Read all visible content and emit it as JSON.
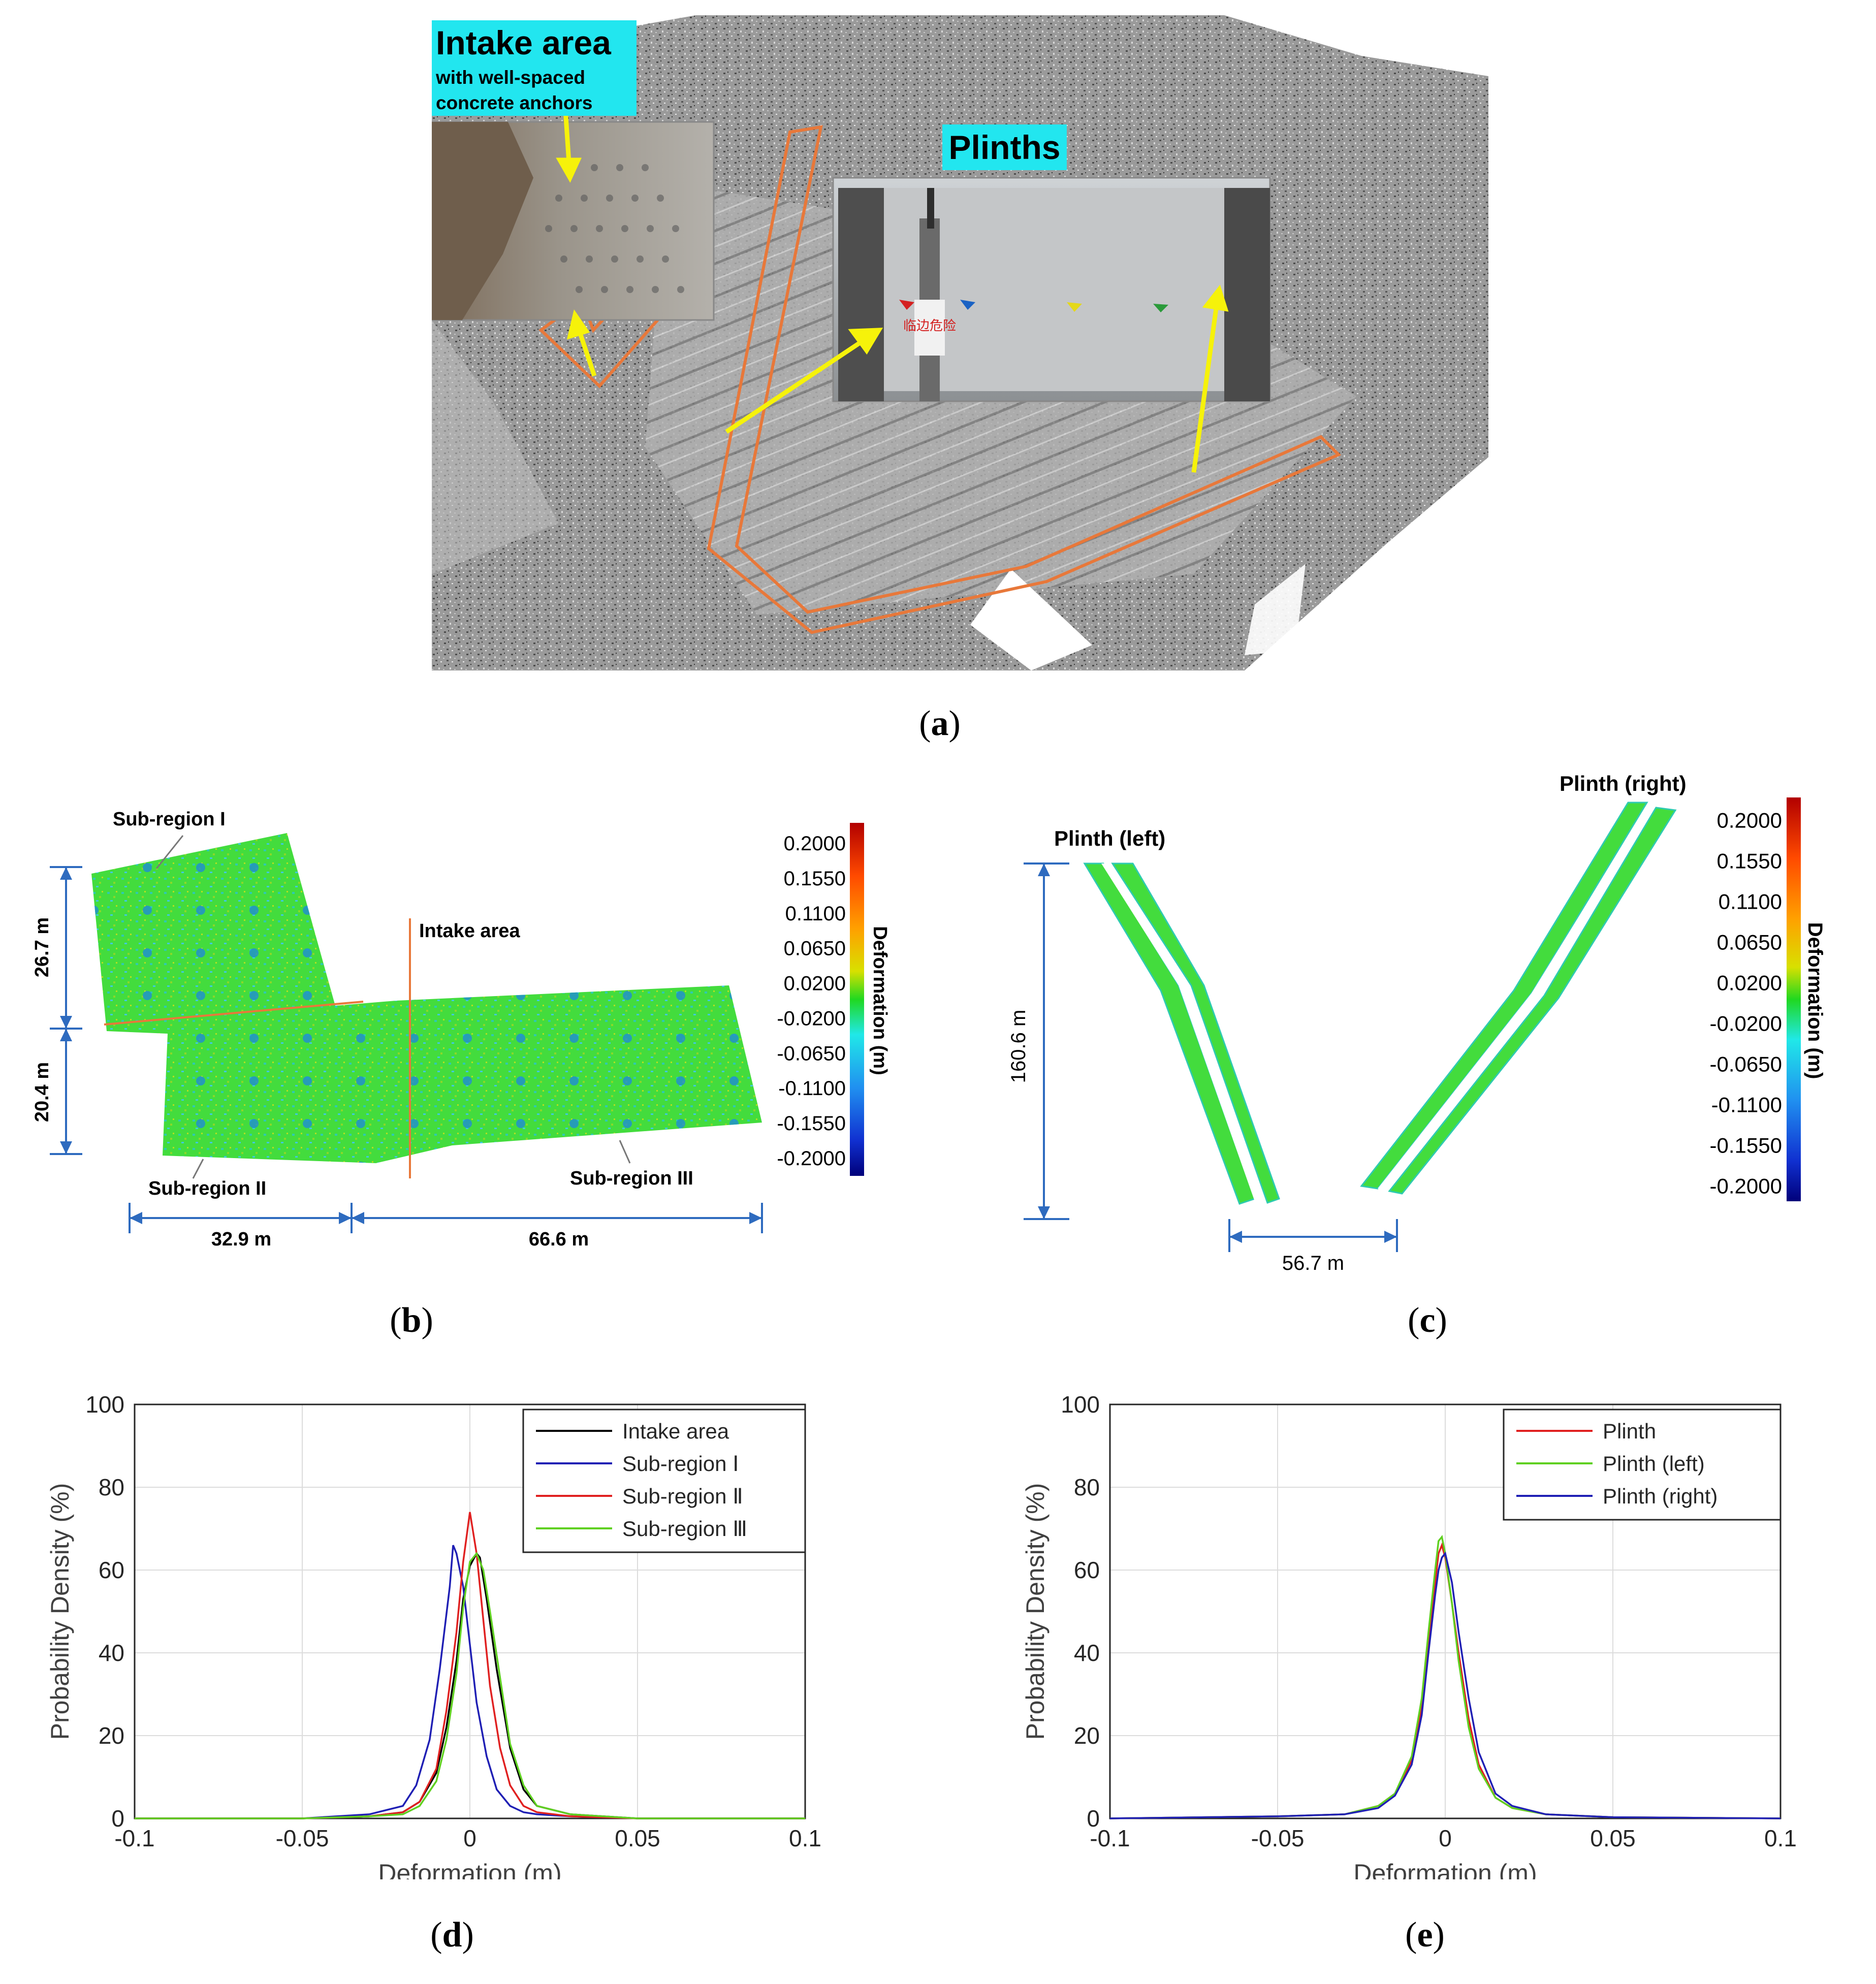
{
  "panel_a": {
    "intake_title": "Intake area",
    "intake_sub1": "with well-spaced",
    "intake_sub2": "concrete anchors",
    "plinths_title": "Plinths",
    "sign_text": "临边危险"
  },
  "panel_b": {
    "labels": {
      "sub1": "Sub-region I",
      "sub2": "Sub-region II",
      "sub3": "Sub-region III",
      "intake": "Intake area"
    },
    "dims": {
      "left_top": "26.7 m",
      "left_bottom": "20.4 m",
      "bottom_left": "32.9 m",
      "bottom_right": "66.6 m"
    },
    "colorbar_title": "Deformation (m)",
    "colorbar_ticks": [
      "0.2000",
      "0.1550",
      "0.1100",
      "0.0650",
      "0.0200",
      "-0.0200",
      "-0.0650",
      "-0.1100",
      "-0.1550",
      "-0.2000"
    ]
  },
  "panel_c": {
    "labels": {
      "left": "Plinth (left)",
      "right": "Plinth (right)"
    },
    "dims": {
      "height": "160.6 m",
      "width": "56.7 m"
    },
    "colorbar_title": "Deformation (m)",
    "colorbar_ticks": [
      "0.2000",
      "0.1550",
      "0.1100",
      "0.0650",
      "0.0200",
      "-0.0200",
      "-0.0650",
      "-0.1100",
      "-0.1550",
      "-0.2000"
    ]
  },
  "captions": {
    "a": "a",
    "b": "b",
    "c": "c",
    "d": "d",
    "e": "e"
  },
  "colors": {
    "black": "#000000",
    "blue": "#1f1fb4",
    "red": "#e02020",
    "green": "#5fd020",
    "orange": "#e8783a",
    "yellow": "#f6f20a",
    "cyan": "#22e6ef"
  },
  "chart_data": [
    {
      "type": "line",
      "xlabel": "Deformation (m)",
      "ylabel": "Probability Density (%)",
      "xlim": [
        -0.1,
        0.1
      ],
      "ylim": [
        0,
        100
      ],
      "xticks": [
        "-0.1",
        "-0.05",
        "0",
        "0.05",
        "0.1"
      ],
      "yticks": [
        "0",
        "20",
        "40",
        "60",
        "80",
        "100"
      ],
      "grid": true,
      "legend": "top-right",
      "series": [
        {
          "name": "Intake area",
          "color": "#000000",
          "x": [
            -0.1,
            -0.05,
            -0.03,
            -0.02,
            -0.015,
            -0.01,
            -0.007,
            -0.004,
            -0.002,
            0,
            0.002,
            0.003,
            0.005,
            0.008,
            0.012,
            0.016,
            0.02,
            0.03,
            0.05,
            0.1
          ],
          "y": [
            0,
            0,
            0.5,
            1.5,
            4,
            11,
            22,
            38,
            53,
            61,
            64,
            63,
            53,
            36,
            17,
            7,
            3,
            1,
            0,
            0
          ]
        },
        {
          "name": "Sub-region Ⅰ",
          "color": "#1f1fb4",
          "x": [
            -0.1,
            -0.05,
            -0.03,
            -0.02,
            -0.016,
            -0.012,
            -0.009,
            -0.006,
            -0.005,
            -0.004,
            -0.002,
            0,
            0.002,
            0.005,
            0.008,
            0.012,
            0.016,
            0.02,
            0.03,
            0.05,
            0.1
          ],
          "y": [
            0,
            0,
            1,
            3,
            8,
            19,
            36,
            56,
            66,
            64,
            56,
            42,
            28,
            15,
            7,
            3,
            1.5,
            1,
            0.5,
            0,
            0
          ]
        },
        {
          "name": "Sub-region Ⅱ",
          "color": "#e02020",
          "x": [
            -0.1,
            -0.05,
            -0.03,
            -0.02,
            -0.015,
            -0.01,
            -0.007,
            -0.004,
            -0.002,
            0,
            0.002,
            0.004,
            0.006,
            0.009,
            0.012,
            0.016,
            0.02,
            0.03,
            0.05,
            0.1
          ],
          "y": [
            0,
            0,
            0.5,
            1.5,
            4,
            12,
            26,
            45,
            62,
            74,
            64,
            48,
            32,
            17,
            8,
            3,
            1.5,
            0.5,
            0,
            0
          ]
        },
        {
          "name": "Sub-region Ⅲ",
          "color": "#5fd020",
          "x": [
            -0.1,
            -0.05,
            -0.03,
            -0.02,
            -0.015,
            -0.01,
            -0.007,
            -0.004,
            -0.002,
            0,
            0.002,
            0.004,
            0.006,
            0.009,
            0.012,
            0.016,
            0.02,
            0.03,
            0.05,
            0.1
          ],
          "y": [
            0,
            0,
            0.5,
            1,
            3,
            9,
            19,
            35,
            51,
            62,
            64,
            60,
            50,
            34,
            18,
            8,
            3,
            1,
            0,
            0
          ]
        }
      ]
    },
    {
      "type": "line",
      "xlabel": "Deformation (m)",
      "ylabel": "Probability Density (%)",
      "xlim": [
        -0.1,
        0.1
      ],
      "ylim": [
        0,
        100
      ],
      "xticks": [
        "-0.1",
        "-0.05",
        "0",
        "0.05",
        "0.1"
      ],
      "yticks": [
        "0",
        "20",
        "40",
        "60",
        "80",
        "100"
      ],
      "grid": true,
      "legend": "top-right",
      "series": [
        {
          "name": "Plinth",
          "color": "#e02020",
          "x": [
            -0.1,
            -0.05,
            -0.03,
            -0.02,
            -0.015,
            -0.01,
            -0.007,
            -0.005,
            -0.003,
            -0.002,
            -0.001,
            0,
            0.002,
            0.004,
            0.007,
            0.01,
            0.015,
            0.02,
            0.03,
            0.05,
            0.1
          ],
          "y": [
            0,
            0.5,
            1,
            3,
            6,
            14,
            27,
            42,
            57,
            64,
            66,
            63,
            52,
            40,
            24,
            13,
            5,
            2.5,
            1,
            0.3,
            0
          ]
        },
        {
          "name": "Plinth (left)",
          "color": "#5fd020",
          "x": [
            -0.1,
            -0.05,
            -0.03,
            -0.02,
            -0.015,
            -0.01,
            -0.007,
            -0.005,
            -0.003,
            -0.002,
            -0.001,
            0,
            0.002,
            0.004,
            0.007,
            0.01,
            0.015,
            0.02,
            0.03,
            0.05,
            0.1
          ],
          "y": [
            0,
            0.5,
            1,
            3,
            6,
            15,
            29,
            45,
            60,
            67,
            68,
            64,
            52,
            38,
            22,
            12,
            5,
            2.5,
            1,
            0.3,
            0
          ]
        },
        {
          "name": "Plinth (right)",
          "color": "#1f1fb4",
          "x": [
            -0.1,
            -0.05,
            -0.03,
            -0.02,
            -0.015,
            -0.01,
            -0.007,
            -0.005,
            -0.003,
            -0.002,
            -0.001,
            0,
            0.002,
            0.004,
            0.007,
            0.01,
            0.015,
            0.02,
            0.03,
            0.05,
            0.1
          ],
          "y": [
            0,
            0.5,
            1,
            2.5,
            5.5,
            13,
            25,
            40,
            54,
            60,
            63,
            64,
            57,
            45,
            29,
            16,
            6,
            3,
            1,
            0.3,
            0
          ]
        }
      ]
    }
  ]
}
